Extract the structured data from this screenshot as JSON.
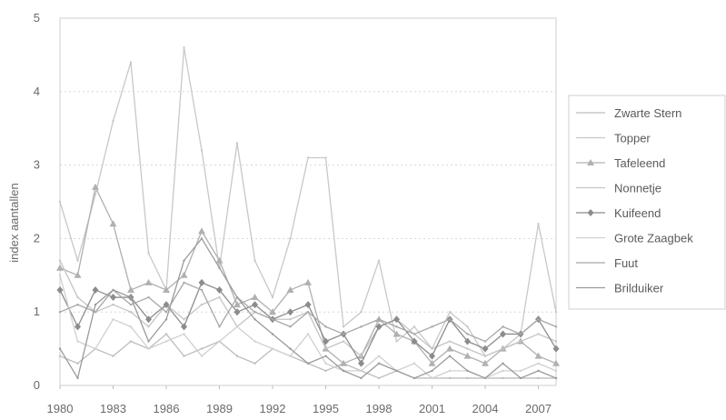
{
  "chart_data": {
    "type": "line",
    "title": "",
    "xlabel": "",
    "ylabel": "index aantallen",
    "xlim": [
      1980,
      2008
    ],
    "ylim": [
      0,
      5
    ],
    "x_ticks": [
      1980,
      1983,
      1986,
      1989,
      1992,
      1995,
      1998,
      2001,
      2004,
      2007
    ],
    "y_ticks": [
      0,
      1,
      2,
      3,
      4,
      5
    ],
    "grid": true,
    "legend_position": "right",
    "x": [
      1980,
      1981,
      1982,
      1983,
      1984,
      1985,
      1986,
      1987,
      1988,
      1989,
      1990,
      1991,
      1992,
      1993,
      1994,
      1995,
      1996,
      1997,
      1998,
      1999,
      2000,
      2001,
      2002,
      2003,
      2004,
      2005,
      2006,
      2007,
      2008
    ],
    "series": [
      {
        "name": "Zwarte Stern",
        "color": "#bdbdbd",
        "marker": "none",
        "values": [
          0.4,
          0.3,
          0.5,
          0.4,
          0.6,
          0.5,
          0.7,
          0.4,
          0.5,
          0.6,
          0.4,
          0.3,
          0.5,
          0.4,
          0.3,
          0.2,
          0.3,
          0.2,
          0.1,
          0.2,
          0.1,
          0.1,
          0.1,
          0.1,
          0.1,
          0.1,
          0.1,
          0.1,
          0.1
        ]
      },
      {
        "name": "Topper",
        "color": "#c8c8c8",
        "marker": "none",
        "values": [
          2.5,
          1.7,
          2.6,
          3.6,
          4.4,
          1.8,
          1.3,
          4.6,
          3.2,
          1.6,
          3.3,
          1.7,
          1.2,
          2.0,
          3.1,
          3.1,
          0.8,
          1.0,
          1.7,
          0.6,
          0.8,
          0.5,
          1.0,
          0.8,
          0.4,
          0.5,
          0.7,
          2.2,
          1.0
        ]
      },
      {
        "name": "Tafeleend",
        "color": "#b0b0b0",
        "marker": "triangle",
        "values": [
          1.6,
          1.5,
          2.7,
          2.2,
          1.3,
          1.4,
          1.3,
          1.5,
          2.1,
          1.7,
          1.1,
          1.2,
          1.0,
          1.3,
          1.4,
          0.5,
          0.3,
          0.4,
          0.9,
          0.7,
          0.6,
          0.3,
          0.5,
          0.4,
          0.3,
          0.5,
          0.6,
          0.4,
          0.3
        ]
      },
      {
        "name": "Nonnetje",
        "color": "#c4c4c4",
        "marker": "none",
        "values": [
          1.7,
          1.2,
          1.0,
          1.1,
          1.0,
          0.8,
          1.1,
          0.9,
          1.1,
          1.2,
          0.8,
          1.0,
          0.9,
          0.9,
          1.0,
          0.5,
          0.6,
          0.4,
          0.8,
          0.9,
          0.7,
          0.5,
          0.6,
          0.5,
          0.4,
          0.5,
          0.6,
          0.7,
          0.6
        ]
      },
      {
        "name": "Kuifeend",
        "color": "#8c8c8c",
        "marker": "diamond",
        "values": [
          1.3,
          0.8,
          1.3,
          1.2,
          1.2,
          0.9,
          1.1,
          0.8,
          1.4,
          1.3,
          1.0,
          1.1,
          0.9,
          1.0,
          1.1,
          0.6,
          0.7,
          0.3,
          0.8,
          0.9,
          0.6,
          0.4,
          0.9,
          0.6,
          0.5,
          0.7,
          0.7,
          0.9,
          0.5
        ]
      },
      {
        "name": "Grote Zaagbek",
        "color": "#d0d0d0",
        "marker": "none",
        "values": [
          1.5,
          0.6,
          0.5,
          0.9,
          0.8,
          0.5,
          0.6,
          0.7,
          0.4,
          0.6,
          0.8,
          0.6,
          0.5,
          0.4,
          0.7,
          0.3,
          0.2,
          0.2,
          0.4,
          0.2,
          0.3,
          0.1,
          0.2,
          0.2,
          0.1,
          0.2,
          0.2,
          0.3,
          0.2
        ]
      },
      {
        "name": "Fuut",
        "color": "#a8a8a8",
        "marker": "none",
        "values": [
          1.0,
          1.1,
          1.0,
          1.3,
          1.1,
          1.2,
          1.0,
          1.4,
          1.3,
          0.8,
          1.2,
          1.0,
          0.9,
          0.8,
          1.0,
          0.8,
          0.7,
          0.8,
          0.9,
          0.8,
          0.7,
          0.8,
          0.9,
          0.7,
          0.6,
          0.8,
          0.7,
          0.9,
          0.8
        ]
      },
      {
        "name": "Brilduiker",
        "color": "#9a9a9a",
        "marker": "none",
        "values": [
          0.5,
          0.1,
          1.1,
          1.3,
          1.2,
          0.6,
          0.9,
          1.7,
          2.0,
          1.6,
          1.2,
          0.9,
          0.7,
          0.5,
          0.3,
          0.4,
          0.2,
          0.1,
          0.3,
          0.2,
          0.1,
          0.2,
          0.4,
          0.2,
          0.1,
          0.3,
          0.1,
          0.2,
          0.1
        ]
      }
    ]
  }
}
